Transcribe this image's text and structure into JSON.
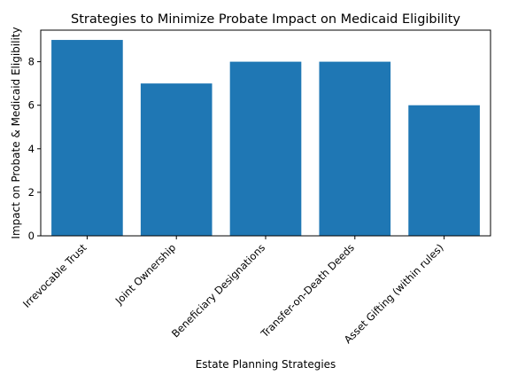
{
  "chart_data": {
    "type": "bar",
    "title": "Strategies to Minimize Probate Impact on Medicaid Eligibility",
    "xlabel": "Estate Planning Strategies",
    "ylabel": "Impact on Probate & Medicaid Eligibility",
    "categories": [
      "Irrevocable Trust",
      "Joint Ownership",
      "Beneficiary Designations",
      "Transfer-on-Death Deeds",
      "Asset Gifting (within rules)"
    ],
    "values": [
      9,
      7,
      8,
      8,
      6
    ],
    "ylim": [
      0,
      9.45
    ],
    "yticks": [
      0,
      2,
      4,
      6,
      8
    ],
    "bar_color": "#1f77b4",
    "grid": false,
    "legend": "none"
  }
}
